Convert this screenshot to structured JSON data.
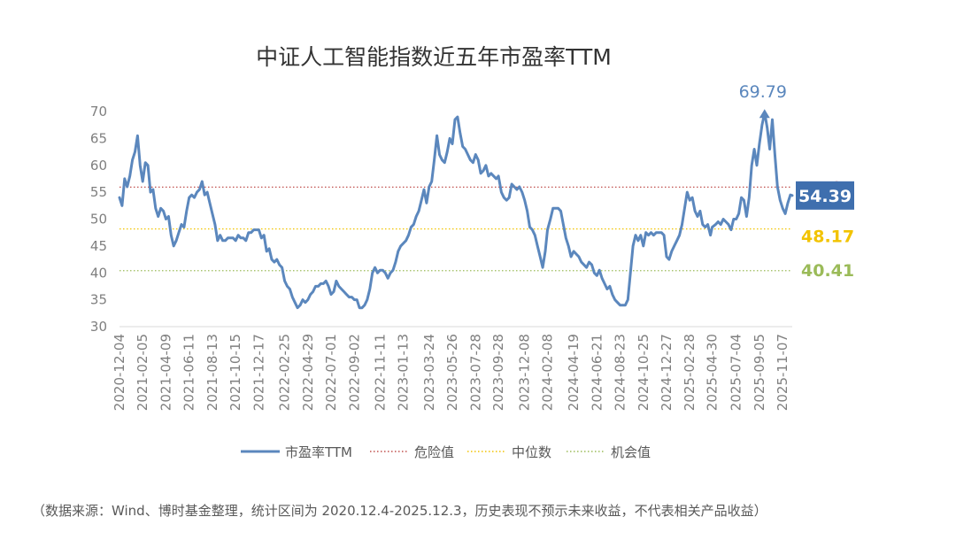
{
  "chart_data": {
    "type": "line",
    "title": "中证人工智能指数近五年市盈率TTM",
    "xlabel": "",
    "ylabel": "",
    "ylim": [
      30,
      70
    ],
    "yticks": [
      30,
      35,
      40,
      45,
      50,
      55,
      60,
      65,
      70
    ],
    "xticks": [
      "2020-12-04",
      "2021-02-05",
      "2021-04-09",
      "2021-06-11",
      "2021-08-13",
      "2021-10-15",
      "2021-12-17",
      "2022-02-25",
      "2022-04-29",
      "2022-07-01",
      "2022-09-02",
      "2022-11-11",
      "2023-01-13",
      "2023-03-24",
      "2023-05-26",
      "2023-07-28",
      "2023-09-28",
      "2023-12-08",
      "2024-02-08",
      "2024-04-19",
      "2024-06-21",
      "2024-08-23",
      "2024-10-25",
      "2024-12-27",
      "2025-02-28",
      "2025-04-30",
      "2025-07-04",
      "2025-09-05",
      "2025-11-07"
    ],
    "x_start": "2020-12-04",
    "x_end": "2025-12-03",
    "grid": false,
    "legend_position": "bottom",
    "series": [
      {
        "name": "市盈率TTM",
        "color": "#5b87bd",
        "points": [
          [
            "2020-12-04",
            54
          ],
          [
            "2020-12-11",
            52.5
          ],
          [
            "2020-12-18",
            57.5
          ],
          [
            "2020-12-25",
            56
          ],
          [
            "2021-01-01",
            58
          ],
          [
            "2021-01-08",
            61
          ],
          [
            "2021-01-15",
            62.5
          ],
          [
            "2021-01-22",
            65.5
          ],
          [
            "2021-01-29",
            60
          ],
          [
            "2021-02-05",
            57
          ],
          [
            "2021-02-12",
            60.5
          ],
          [
            "2021-02-19",
            60
          ],
          [
            "2021-02-26",
            55
          ],
          [
            "2021-03-05",
            55.5
          ],
          [
            "2021-03-12",
            52
          ],
          [
            "2021-03-19",
            50.5
          ],
          [
            "2021-03-26",
            52
          ],
          [
            "2021-04-02",
            51.5
          ],
          [
            "2021-04-09",
            50
          ],
          [
            "2021-04-16",
            50.5
          ],
          [
            "2021-04-23",
            47
          ],
          [
            "2021-04-30",
            45
          ],
          [
            "2021-05-07",
            46
          ],
          [
            "2021-05-14",
            47.5
          ],
          [
            "2021-05-21",
            49
          ],
          [
            "2021-05-28",
            48.5
          ],
          [
            "2021-06-04",
            51.5
          ],
          [
            "2021-06-11",
            54
          ],
          [
            "2021-06-18",
            54.5
          ],
          [
            "2021-06-25",
            54
          ],
          [
            "2021-07-02",
            55
          ],
          [
            "2021-07-09",
            55.5
          ],
          [
            "2021-07-16",
            57
          ],
          [
            "2021-07-23",
            54.5
          ],
          [
            "2021-07-30",
            55
          ],
          [
            "2021-08-06",
            53
          ],
          [
            "2021-08-13",
            51
          ],
          [
            "2021-08-20",
            49
          ],
          [
            "2021-08-27",
            46
          ],
          [
            "2021-09-03",
            47
          ],
          [
            "2021-09-10",
            46
          ],
          [
            "2021-09-17",
            46
          ],
          [
            "2021-09-24",
            46.5
          ],
          [
            "2021-10-01",
            46.5
          ],
          [
            "2021-10-08",
            46.5
          ],
          [
            "2021-10-15",
            46
          ],
          [
            "2021-10-22",
            47
          ],
          [
            "2021-10-29",
            46.5
          ],
          [
            "2021-11-05",
            46.5
          ],
          [
            "2021-11-12",
            46
          ],
          [
            "2021-11-19",
            47.5
          ],
          [
            "2021-11-26",
            47.5
          ],
          [
            "2021-12-03",
            48
          ],
          [
            "2021-12-10",
            48
          ],
          [
            "2021-12-17",
            48
          ],
          [
            "2021-12-24",
            46.5
          ],
          [
            "2021-12-31",
            47
          ],
          [
            "2022-01-07",
            44
          ],
          [
            "2022-01-14",
            44.5
          ],
          [
            "2022-01-21",
            42.5
          ],
          [
            "2022-01-28",
            42
          ],
          [
            "2022-02-04",
            42.5
          ],
          [
            "2022-02-11",
            41.5
          ],
          [
            "2022-02-18",
            41
          ],
          [
            "2022-02-25",
            38.5
          ],
          [
            "2022-03-04",
            37.5
          ],
          [
            "2022-03-11",
            37
          ],
          [
            "2022-03-18",
            35.5
          ],
          [
            "2022-03-25",
            34.5
          ],
          [
            "2022-04-01",
            33.5
          ],
          [
            "2022-04-08",
            34
          ],
          [
            "2022-04-15",
            35
          ],
          [
            "2022-04-22",
            34.5
          ],
          [
            "2022-04-29",
            35
          ],
          [
            "2022-05-06",
            36
          ],
          [
            "2022-05-13",
            36.5
          ],
          [
            "2022-05-20",
            37.5
          ],
          [
            "2022-05-27",
            37.5
          ],
          [
            "2022-06-03",
            38
          ],
          [
            "2022-06-10",
            38
          ],
          [
            "2022-06-17",
            38.5
          ],
          [
            "2022-06-24",
            37.5
          ],
          [
            "2022-07-01",
            36
          ],
          [
            "2022-07-08",
            36.5
          ],
          [
            "2022-07-15",
            38.5
          ],
          [
            "2022-07-22",
            37.5
          ],
          [
            "2022-07-29",
            37
          ],
          [
            "2022-08-05",
            36.5
          ],
          [
            "2022-08-12",
            36
          ],
          [
            "2022-08-19",
            35.5
          ],
          [
            "2022-08-26",
            35.5
          ],
          [
            "2022-09-02",
            35
          ],
          [
            "2022-09-09",
            35
          ],
          [
            "2022-09-16",
            33.5
          ],
          [
            "2022-09-23",
            33.5
          ],
          [
            "2022-09-30",
            34
          ],
          [
            "2022-10-07",
            35
          ],
          [
            "2022-10-14",
            37
          ],
          [
            "2022-10-21",
            40
          ],
          [
            "2022-10-28",
            41
          ],
          [
            "2022-11-04",
            40
          ],
          [
            "2022-11-11",
            40.5
          ],
          [
            "2022-11-18",
            40.5
          ],
          [
            "2022-11-25",
            40
          ],
          [
            "2022-12-02",
            39
          ],
          [
            "2022-12-09",
            40
          ],
          [
            "2022-12-16",
            40.5
          ],
          [
            "2022-12-23",
            42
          ],
          [
            "2022-12-30",
            44
          ],
          [
            "2023-01-06",
            45
          ],
          [
            "2023-01-13",
            45.5
          ],
          [
            "2023-01-20",
            46
          ],
          [
            "2023-01-27",
            47
          ],
          [
            "2023-02-03",
            48.5
          ],
          [
            "2023-02-10",
            49
          ],
          [
            "2023-02-17",
            50.5
          ],
          [
            "2023-02-24",
            51.5
          ],
          [
            "2023-03-03",
            53.5
          ],
          [
            "2023-03-10",
            55.5
          ],
          [
            "2023-03-17",
            53
          ],
          [
            "2023-03-24",
            56
          ],
          [
            "2023-03-31",
            57
          ],
          [
            "2023-04-07",
            61
          ],
          [
            "2023-04-14",
            65.5
          ],
          [
            "2023-04-21",
            62
          ],
          [
            "2023-04-28",
            61
          ],
          [
            "2023-05-05",
            60.5
          ],
          [
            "2023-05-12",
            62.5
          ],
          [
            "2023-05-19",
            65
          ],
          [
            "2023-05-26",
            64
          ],
          [
            "2023-06-02",
            68.5
          ],
          [
            "2023-06-09",
            69
          ],
          [
            "2023-06-16",
            66
          ],
          [
            "2023-06-23",
            63.5
          ],
          [
            "2023-06-30",
            63
          ],
          [
            "2023-07-07",
            62
          ],
          [
            "2023-07-14",
            61
          ],
          [
            "2023-07-21",
            60.5
          ],
          [
            "2023-07-28",
            62
          ],
          [
            "2023-08-04",
            61
          ],
          [
            "2023-08-11",
            58.5
          ],
          [
            "2023-08-18",
            59
          ],
          [
            "2023-08-25",
            60
          ],
          [
            "2023-09-01",
            58
          ],
          [
            "2023-09-08",
            58.5
          ],
          [
            "2023-09-15",
            58
          ],
          [
            "2023-09-22",
            57.5
          ],
          [
            "2023-09-28",
            58
          ],
          [
            "2023-10-06",
            55
          ],
          [
            "2023-10-13",
            54
          ],
          [
            "2023-10-20",
            53.5
          ],
          [
            "2023-10-27",
            54
          ],
          [
            "2023-11-03",
            56.5
          ],
          [
            "2023-11-10",
            56
          ],
          [
            "2023-11-17",
            55.5
          ],
          [
            "2023-11-24",
            56
          ],
          [
            "2023-12-01",
            55
          ],
          [
            "2023-12-08",
            53.5
          ],
          [
            "2023-12-15",
            51.5
          ],
          [
            "2023-12-22",
            48.5
          ],
          [
            "2023-12-29",
            48
          ],
          [
            "2024-01-05",
            47
          ],
          [
            "2024-01-12",
            45
          ],
          [
            "2024-01-19",
            43
          ],
          [
            "2024-01-26",
            41
          ],
          [
            "2024-02-02",
            44
          ],
          [
            "2024-02-08",
            48
          ],
          [
            "2024-02-16",
            50
          ],
          [
            "2024-02-23",
            52
          ],
          [
            "2024-03-01",
            52
          ],
          [
            "2024-03-08",
            52
          ],
          [
            "2024-03-15",
            51.5
          ],
          [
            "2024-03-22",
            49
          ],
          [
            "2024-03-29",
            46.5
          ],
          [
            "2024-04-05",
            45
          ],
          [
            "2024-04-12",
            43
          ],
          [
            "2024-04-19",
            44
          ],
          [
            "2024-04-26",
            43.5
          ],
          [
            "2024-05-03",
            43
          ],
          [
            "2024-05-10",
            42
          ],
          [
            "2024-05-17",
            41.5
          ],
          [
            "2024-05-24",
            41
          ],
          [
            "2024-05-31",
            42
          ],
          [
            "2024-06-07",
            41.5
          ],
          [
            "2024-06-14",
            40
          ],
          [
            "2024-06-21",
            39.5
          ],
          [
            "2024-06-28",
            40.5
          ],
          [
            "2024-07-05",
            39
          ],
          [
            "2024-07-12",
            38
          ],
          [
            "2024-07-19",
            37
          ],
          [
            "2024-07-26",
            37.5
          ],
          [
            "2024-08-02",
            36
          ],
          [
            "2024-08-09",
            35
          ],
          [
            "2024-08-16",
            34.5
          ],
          [
            "2024-08-23",
            34
          ],
          [
            "2024-08-30",
            34
          ],
          [
            "2024-09-06",
            34
          ],
          [
            "2024-09-13",
            35
          ],
          [
            "2024-09-20",
            40
          ],
          [
            "2024-09-27",
            45
          ],
          [
            "2024-10-04",
            47
          ],
          [
            "2024-10-11",
            46
          ],
          [
            "2024-10-18",
            47
          ],
          [
            "2024-10-25",
            45
          ],
          [
            "2024-11-01",
            47.5
          ],
          [
            "2024-11-08",
            47
          ],
          [
            "2024-11-15",
            47.5
          ],
          [
            "2024-11-22",
            47
          ],
          [
            "2024-11-29",
            47.5
          ],
          [
            "2024-12-06",
            47.5
          ],
          [
            "2024-12-13",
            47.5
          ],
          [
            "2024-12-20",
            47
          ],
          [
            "2024-12-27",
            43
          ],
          [
            "2025-01-03",
            42.5
          ],
          [
            "2025-01-10",
            44
          ],
          [
            "2025-01-17",
            45
          ],
          [
            "2025-01-24",
            46
          ],
          [
            "2025-01-31",
            47
          ],
          [
            "2025-02-07",
            49
          ],
          [
            "2025-02-14",
            52
          ],
          [
            "2025-02-21",
            55
          ],
          [
            "2025-02-28",
            53.5
          ],
          [
            "2025-03-07",
            54
          ],
          [
            "2025-03-14",
            51.5
          ],
          [
            "2025-03-21",
            50.5
          ],
          [
            "2025-03-28",
            51.5
          ],
          [
            "2025-04-04",
            49
          ],
          [
            "2025-04-11",
            48.5
          ],
          [
            "2025-04-18",
            49
          ],
          [
            "2025-04-25",
            47
          ],
          [
            "2025-04-30",
            48.5
          ],
          [
            "2025-05-09",
            49
          ],
          [
            "2025-05-16",
            49.5
          ],
          [
            "2025-05-23",
            49
          ],
          [
            "2025-05-30",
            50
          ],
          [
            "2025-06-06",
            49.5
          ],
          [
            "2025-06-13",
            49
          ],
          [
            "2025-06-20",
            48
          ],
          [
            "2025-06-27",
            50
          ],
          [
            "2025-07-04",
            50
          ],
          [
            "2025-07-11",
            51
          ],
          [
            "2025-07-18",
            54
          ],
          [
            "2025-07-25",
            53.5
          ],
          [
            "2025-08-01",
            50.5
          ],
          [
            "2025-08-08",
            54
          ],
          [
            "2025-08-15",
            60
          ],
          [
            "2025-08-22",
            63
          ],
          [
            "2025-08-29",
            60
          ],
          [
            "2025-09-05",
            64
          ],
          [
            "2025-09-12",
            67.5
          ],
          [
            "2025-09-19",
            69.79
          ],
          [
            "2025-09-26",
            67
          ],
          [
            "2025-10-03",
            63
          ],
          [
            "2025-10-10",
            68.5
          ],
          [
            "2025-10-17",
            62
          ],
          [
            "2025-10-24",
            56
          ],
          [
            "2025-10-31",
            53.5
          ],
          [
            "2025-11-07",
            52
          ],
          [
            "2025-11-14",
            51
          ],
          [
            "2025-11-21",
            53
          ],
          [
            "2025-11-28",
            54.5
          ],
          [
            "2025-12-03",
            54.39
          ]
        ]
      },
      {
        "name": "危险值",
        "value": 55.95,
        "color": "#c0504d",
        "style": "dotted"
      },
      {
        "name": "中位数",
        "value": 48.17,
        "color": "#f2c300",
        "style": "dotted"
      },
      {
        "name": "机会值",
        "value": 40.41,
        "color": "#9bbb59",
        "style": "dotted"
      }
    ],
    "annotations": {
      "max_label": "69.79",
      "max_date": "2025-09-19",
      "max_value": 69.79,
      "latest_label": "54.39",
      "latest_value": 54.39,
      "danger_label": "55.95",
      "median_label": "48.17",
      "opportunity_label": "40.41"
    }
  },
  "source_note": "（数据来源：Wind、博时基金整理，统计区间为 2020.12.4-2025.12.3，历史表现不预示未来收益，不代表相关产品收益）"
}
